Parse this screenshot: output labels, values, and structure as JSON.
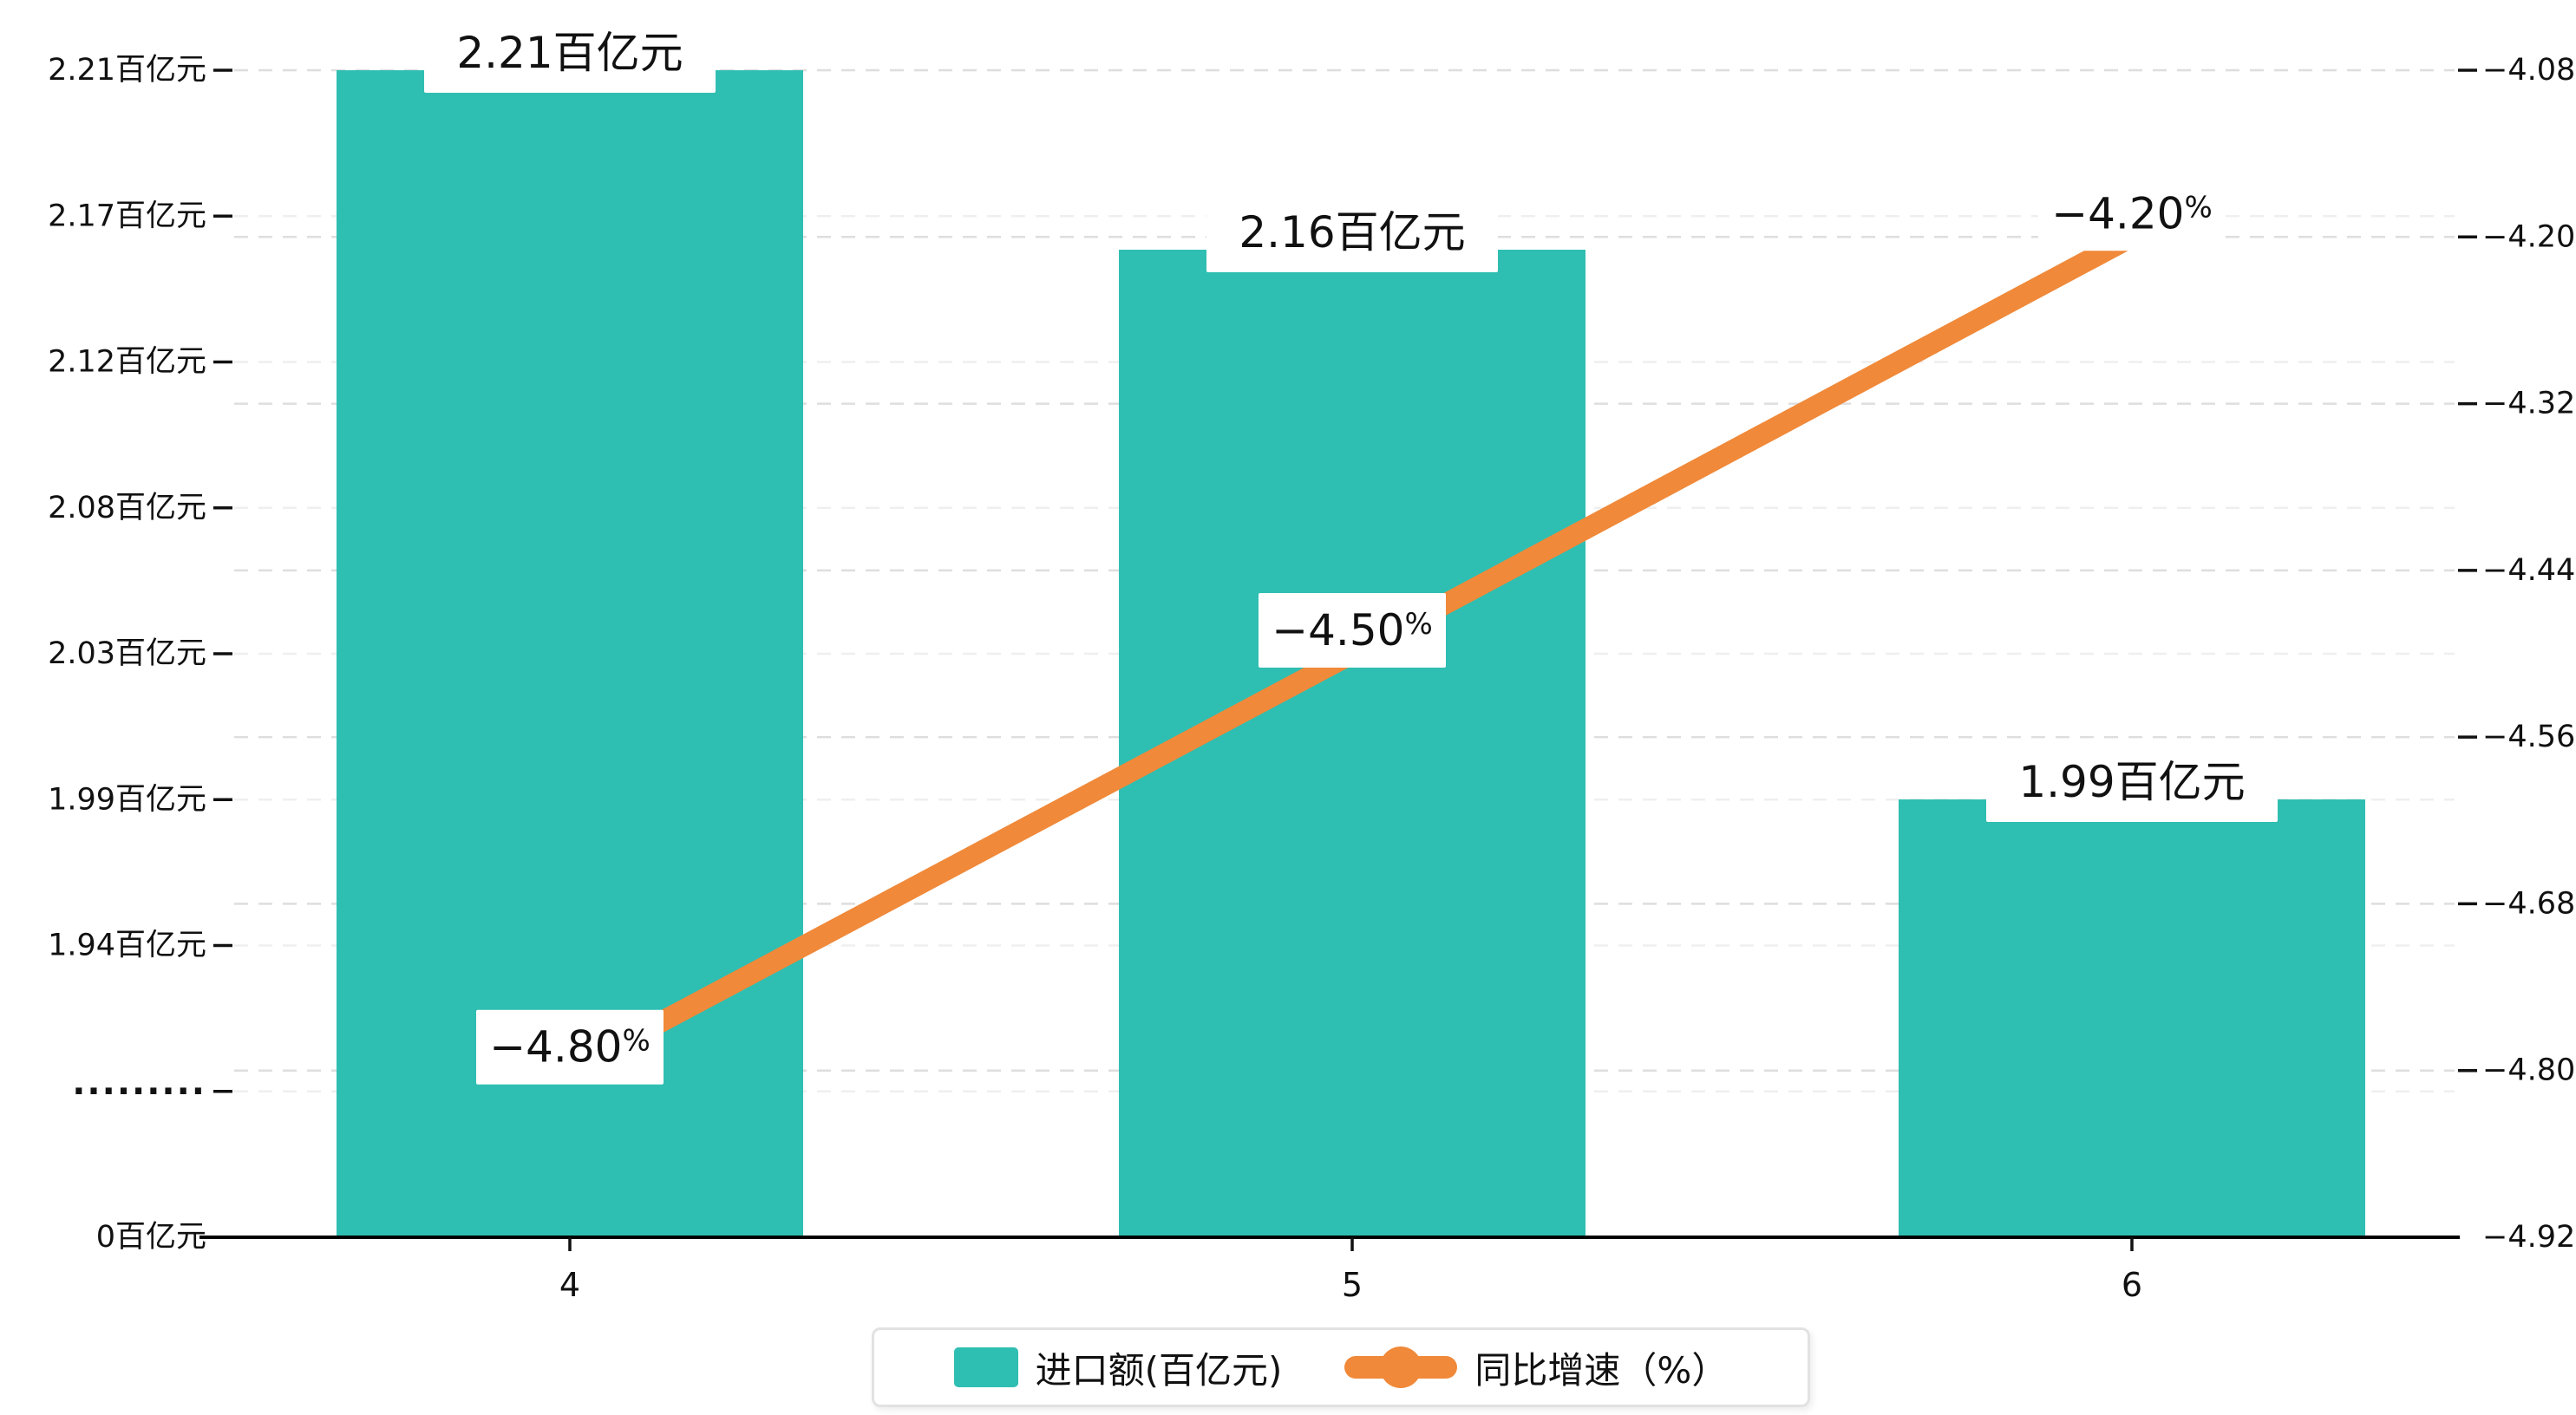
{
  "chart_data": {
    "type": "bar",
    "subtype": "bar-line-combo-dual-axis",
    "categories": [
      "4",
      "5",
      "6"
    ],
    "series": [
      {
        "name": "进口额(百亿元)",
        "type": "bar",
        "axis": "left",
        "color": "#2fbeb2",
        "values": [
          2.21,
          2.16,
          1.99
        ],
        "data_labels": [
          "2.21百亿元",
          "2.16百亿元",
          "1.99百亿元"
        ]
      },
      {
        "name": "同比增速（%）",
        "type": "line",
        "axis": "right",
        "color": "#f08939",
        "values": [
          -4.8,
          -4.5,
          -4.2
        ],
        "data_labels": [
          "−4.80%",
          "−4.50%",
          "−4.20%"
        ]
      }
    ],
    "left_axis": {
      "unit": "百亿元",
      "tick_labels": [
        "2.21百亿元",
        "2.17百亿元",
        "2.12百亿元",
        "2.08百亿元",
        "2.03百亿元",
        "1.99百亿元",
        "1.94百亿元",
        "·········",
        "0百亿元"
      ],
      "axis_break_label": "·········",
      "has_axis_break": true
    },
    "right_axis": {
      "tick_labels": [
        "−4.08",
        "−4.20",
        "−4.32",
        "−4.44",
        "−4.56",
        "−4.68",
        "−4.80",
        "−4.92"
      ],
      "max": -4.08,
      "min": -4.92
    },
    "grid": {
      "dashed": true,
      "major_color": "#dedede",
      "minor_color": "#efefef"
    },
    "axis_line_color": "#000000",
    "label_box_color": "#ffffff",
    "legend_position": "bottom"
  },
  "legend": {
    "items": [
      {
        "label": "进口额(百亿元)",
        "swatch": "bar-swatch",
        "color": "#2fbeb2"
      },
      {
        "label": "同比增速（%）",
        "swatch": "line-dot-swatch",
        "color": "#f08939"
      }
    ]
  }
}
